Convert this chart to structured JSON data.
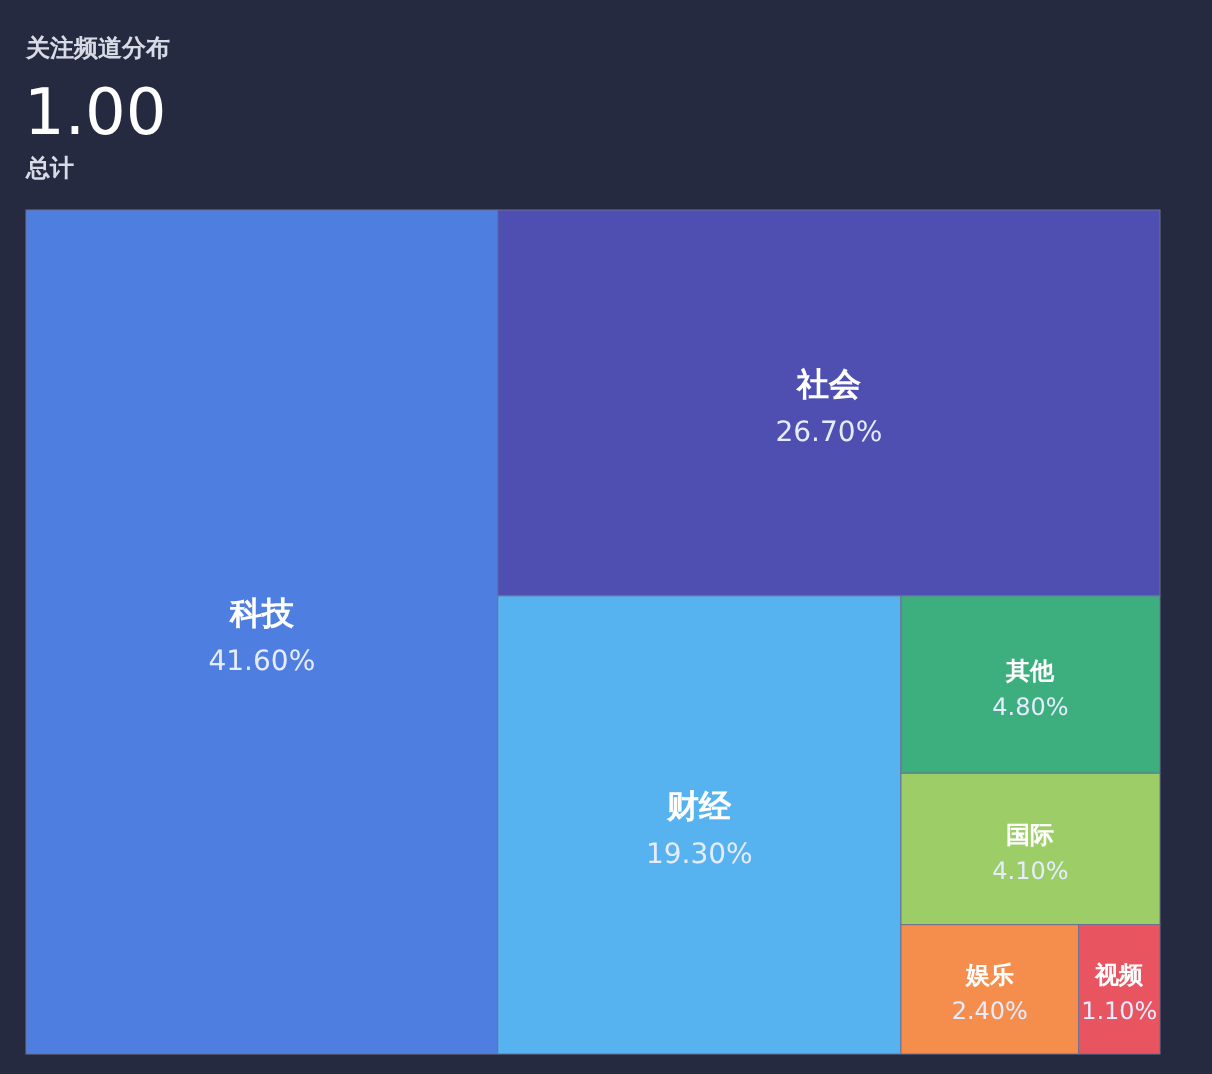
{
  "chart_data": {
    "type": "other",
    "title": "关注频道分布",
    "annotations": [
      "1.00",
      "总计"
    ],
    "categories": [
      "科技",
      "社会",
      "财经",
      "其他",
      "国际",
      "娱乐",
      "视频"
    ],
    "values": [
      41.6,
      26.7,
      19.3,
      4.8,
      4.1,
      2.4,
      1.1
    ],
    "value_labels": [
      "41.60%",
      "26.70%",
      "19.30%",
      "4.80%",
      "4.10%",
      "2.40%",
      "1.10%"
    ],
    "colors": [
      "#4e7fe0",
      "#4e4fb0",
      "#57b3f0",
      "#3dae7e",
      "#9ccd66",
      "#f58d4d",
      "#e85560"
    ]
  }
}
